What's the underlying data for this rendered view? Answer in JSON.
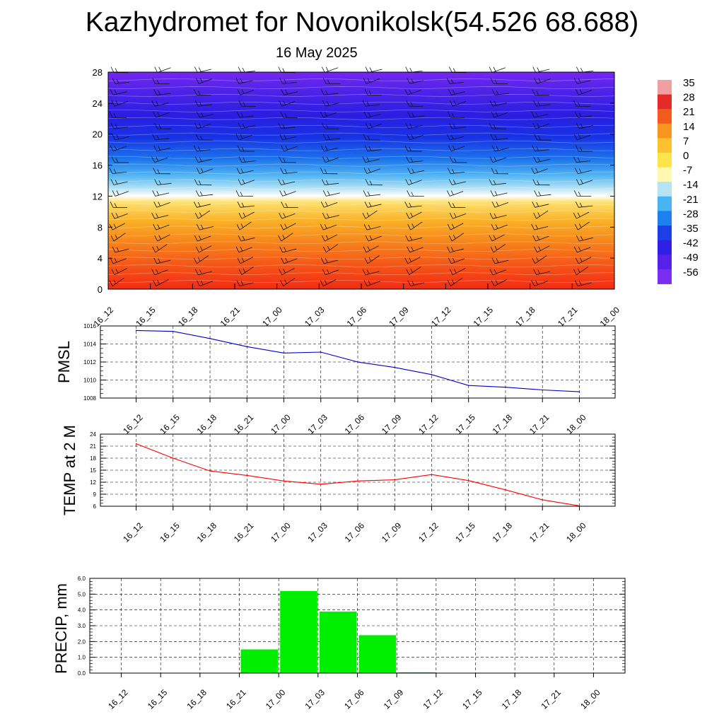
{
  "title": "Kazhydromet for Novonikolsk(54.526 68.688)",
  "date": "16 May 2025",
  "time_labels": [
    "16_12",
    "16_15",
    "16_18",
    "16_21",
    "17_00",
    "17_03",
    "17_06",
    "17_09",
    "17_12",
    "17_15",
    "17_18",
    "17_21",
    "18_00"
  ],
  "chart_data": [
    {
      "type": "heatmap",
      "name": "temperature-cross-section",
      "xlabel": "",
      "ylabel": "",
      "x": [
        "16_12",
        "16_15",
        "16_18",
        "16_21",
        "17_00",
        "17_03",
        "17_06",
        "17_09",
        "17_12",
        "17_15",
        "17_18",
        "17_21",
        "18_00"
      ],
      "y_ticks": [
        0,
        4,
        8,
        12,
        16,
        20,
        24,
        28
      ],
      "ylim": [
        0,
        28
      ],
      "colorbar_labels": [
        "35",
        "28",
        "21",
        "14",
        "7",
        "0",
        "-7",
        "-14",
        "-21",
        "-28",
        "-35",
        "-42",
        "-49",
        "-56"
      ],
      "colorbar_colors": [
        "#f0a0a0",
        "#e52a2a",
        "#f25a1e",
        "#f7951e",
        "#fbc22e",
        "#fce54a",
        "#fff8b0",
        "#b7e4f4",
        "#48b4f2",
        "#1e80ee",
        "#1e3ee8",
        "#3020e6",
        "#5422ea",
        "#7a2cf0"
      ],
      "legend_position": "right"
    },
    {
      "type": "line",
      "name": "pmsl",
      "ylabel": "PMSL",
      "ylim": [
        1008,
        1016
      ],
      "y_ticks": [
        1008,
        1010,
        1012,
        1014,
        1016
      ],
      "x": [
        "16_12",
        "16_15",
        "16_18",
        "16_21",
        "17_00",
        "17_03",
        "17_06",
        "17_09",
        "17_12",
        "17_15",
        "17_18",
        "17_21",
        "18_00"
      ],
      "series": [
        {
          "values": [
            1015.5,
            1015.4,
            1014.6,
            1013.7,
            1013.0,
            1013.1,
            1012.0,
            1011.4,
            1010.6,
            1009.4,
            1009.2,
            1008.9,
            1008.7
          ],
          "color": "#0000cc"
        }
      ],
      "grid": true
    },
    {
      "type": "line",
      "name": "temp-2m",
      "ylabel": "TEMP at 2 M",
      "ylim": [
        6,
        24
      ],
      "y_ticks": [
        6,
        9,
        12,
        15,
        18,
        21,
        24
      ],
      "x": [
        "16_12",
        "16_15",
        "16_18",
        "16_21",
        "17_00",
        "17_03",
        "17_06",
        "17_09",
        "17_12",
        "17_15",
        "17_18",
        "17_21",
        "18_00"
      ],
      "series": [
        {
          "values": [
            21.6,
            18.0,
            14.8,
            13.7,
            12.3,
            11.5,
            12.3,
            12.6,
            13.9,
            12.4,
            10.1,
            7.6,
            6.1
          ],
          "color": "#ff0000"
        }
      ],
      "grid": true
    },
    {
      "type": "bar",
      "name": "precip",
      "ylabel": "PRECIP, mm",
      "ylim": [
        0,
        6
      ],
      "y_ticks": [
        "0.0",
        "1.0",
        "2.0",
        "3.0",
        "4.0",
        "5.0",
        "6.0"
      ],
      "categories": [
        "16_12",
        "16_15",
        "16_18",
        "16_21",
        "17_00",
        "17_03",
        "17_06",
        "17_09",
        "17_12",
        "17_15",
        "17_18",
        "17_21",
        "18_00"
      ],
      "values": [
        0,
        0,
        0,
        0,
        1.5,
        5.2,
        3.9,
        2.4,
        0.05,
        0,
        0,
        0,
        0
      ],
      "bar_color": "#00ee00",
      "grid": true
    }
  ]
}
